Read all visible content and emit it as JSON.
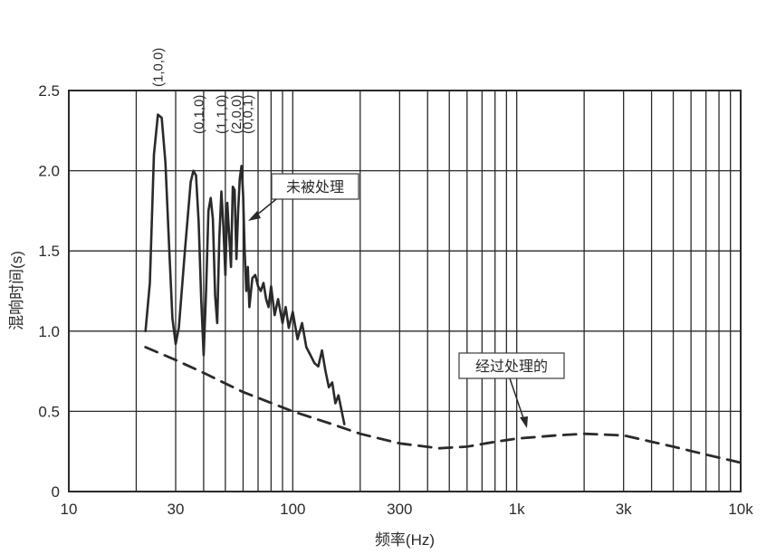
{
  "chart_data": {
    "type": "line",
    "xlabel": "频率(Hz)",
    "ylabel": "混响时间(s)",
    "x_scale": "log",
    "xlim": [
      10,
      10000
    ],
    "ylim": [
      0,
      2.5
    ],
    "grid": true,
    "x_ticks": [
      {
        "value": 10,
        "label": "10"
      },
      {
        "value": 30,
        "label": "30"
      },
      {
        "value": 100,
        "label": "100"
      },
      {
        "value": 300,
        "label": "300"
      },
      {
        "value": 1000,
        "label": "1k"
      },
      {
        "value": 3000,
        "label": "3k"
      },
      {
        "value": 10000,
        "label": "10k"
      }
    ],
    "y_ticks": [
      {
        "value": 0,
        "label": "0"
      },
      {
        "value": 0.5,
        "label": "0.5"
      },
      {
        "value": 1.0,
        "label": "1.0"
      },
      {
        "value": 1.5,
        "label": "1.5"
      },
      {
        "value": 2.0,
        "label": "2.0"
      },
      {
        "value": 2.5,
        "label": "2.5"
      }
    ],
    "series": [
      {
        "style": "solid",
        "x": [
          22,
          23,
          24,
          25,
          26,
          27,
          28,
          29,
          30,
          31,
          33,
          35,
          36,
          37,
          38,
          39,
          40,
          41,
          42,
          43,
          44,
          45,
          46,
          47,
          48,
          49,
          50,
          51,
          52,
          53,
          54,
          55,
          56,
          57,
          58,
          59,
          60,
          61,
          62,
          63,
          64,
          66,
          68,
          70,
          72,
          74,
          76,
          78,
          80,
          83,
          86,
          90,
          93,
          96,
          100,
          105,
          110,
          115,
          120,
          125,
          130,
          135,
          140,
          145,
          150,
          155,
          160,
          170
        ],
        "y": [
          1.0,
          1.3,
          2.1,
          2.35,
          2.33,
          2.05,
          1.55,
          1.08,
          0.92,
          1.02,
          1.5,
          1.93,
          2.0,
          1.97,
          1.68,
          1.2,
          0.85,
          1.25,
          1.75,
          1.83,
          1.7,
          1.22,
          1.05,
          1.58,
          1.87,
          1.65,
          1.35,
          1.8,
          1.6,
          1.4,
          1.9,
          1.88,
          1.45,
          1.75,
          1.95,
          2.03,
          1.85,
          1.5,
          1.25,
          1.4,
          1.15,
          1.33,
          1.35,
          1.28,
          1.25,
          1.3,
          1.2,
          1.15,
          1.28,
          1.1,
          1.2,
          1.05,
          1.15,
          1.02,
          1.12,
          0.95,
          1.05,
          0.9,
          0.85,
          0.8,
          0.78,
          0.88,
          0.75,
          0.65,
          0.68,
          0.55,
          0.6,
          0.42
        ]
      },
      {
        "style": "dashed",
        "x": [
          22,
          30,
          40,
          60,
          100,
          150,
          200,
          300,
          450,
          600,
          800,
          1000,
          1500,
          2000,
          3000,
          5000,
          7000,
          10000
        ],
        "y": [
          0.9,
          0.82,
          0.74,
          0.62,
          0.5,
          0.42,
          0.36,
          0.3,
          0.27,
          0.28,
          0.31,
          0.33,
          0.35,
          0.36,
          0.35,
          0.28,
          0.23,
          0.18
        ]
      }
    ],
    "mode_labels": [
      {
        "text": "(1,0,0)",
        "x": 25
      },
      {
        "text": "(0,1,0)",
        "x": 38
      },
      {
        "text": "(1,1,0)",
        "x": 48
      },
      {
        "text": "(2,0,0)",
        "x": 56
      },
      {
        "text": "(0,0,1)",
        "x": 63
      }
    ],
    "annotations": [
      {
        "text": "未被处理"
      },
      {
        "text": "经过处理的"
      }
    ]
  }
}
